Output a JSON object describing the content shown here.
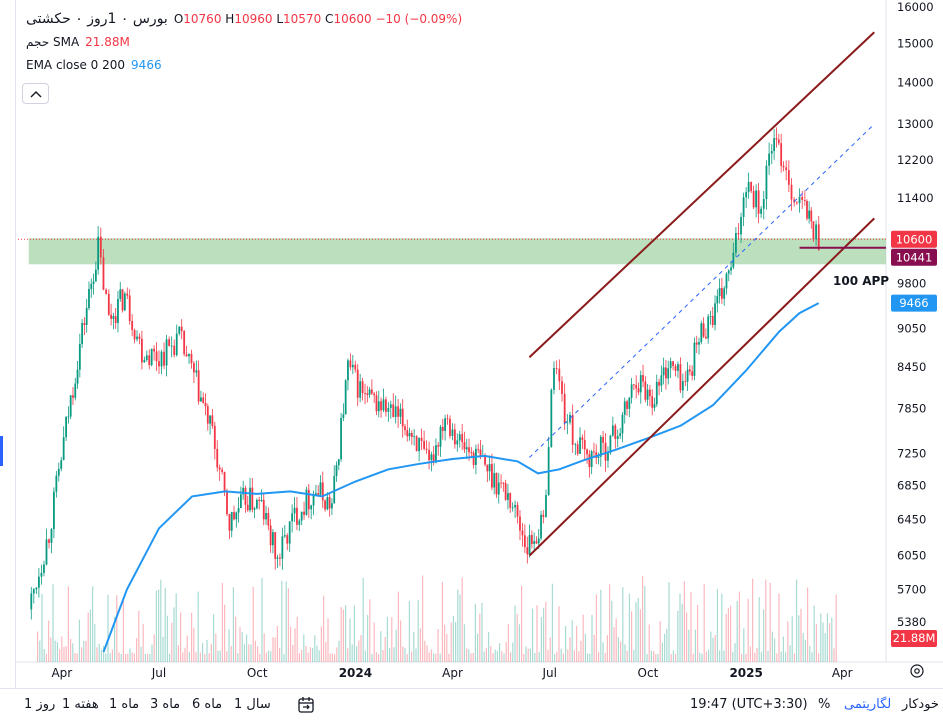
{
  "legend": {
    "symbol": "بورس ۰ 1روز ۰ حکشتی",
    "open_label": "O",
    "open": "10760",
    "high_label": "H",
    "high": "10960",
    "low_label": "L",
    "low": "10570",
    "close_label": "C",
    "close": "10600",
    "change": "−10 (−0.09%)",
    "volume_name": "حجم SMA",
    "volume_value": "21.88M",
    "ema_name": "EMA close 0 200",
    "ema_value": "9466"
  },
  "collapse_icon": "chevron-up-icon",
  "timeframes": [
    "روز 1",
    "هفته 1",
    "ماه 1",
    "ماه 3",
    "ماه 6",
    "سال 1"
  ],
  "bottom_bar": {
    "time": "19:47 (UTC+3:30)",
    "percent": "%",
    "log": "لگاریتمی",
    "auto": "خودکار"
  },
  "chart_data": {
    "type": "candlestick",
    "y_scale": "log",
    "y_ticks": [
      16000,
      15000,
      14000,
      13000,
      12200,
      11400,
      10600,
      9800,
      9050,
      8450,
      7850,
      7250,
      6850,
      6450,
      6050,
      5700,
      5380
    ],
    "y_tick_labels": [
      "16000",
      "15000",
      "14000",
      "13000",
      "12200",
      "11400",
      "",
      "9800",
      "9050",
      "8450",
      "7850",
      "7250",
      "6850",
      "6450",
      "6050",
      "5700",
      "5380"
    ],
    "x_tick_labels": [
      "Apr",
      "Jul",
      "Oct",
      "2024",
      "Apr",
      "Jul",
      "Oct",
      "2025",
      "Apr"
    ],
    "x_tick_dates": [
      "2023-04-01",
      "2023-07-01",
      "2023-10-01",
      "2024-01-01",
      "2024-04-01",
      "2024-07-01",
      "2024-10-01",
      "2025-01-01",
      "2025-04-01"
    ],
    "x_range": [
      "2023-02-18",
      "2025-05-12"
    ],
    "y_range": [
      5100,
      16200
    ],
    "price_labels": [
      {
        "value": 10600,
        "text": "10600",
        "color": "#f23645"
      },
      {
        "value": 10441,
        "text": "10441",
        "color": "#880e4f"
      },
      {
        "value": 9466,
        "text": "9466",
        "color": "#2196f3"
      }
    ],
    "volume_label": {
      "text": "21.88M",
      "color": "#f23645"
    },
    "annotation": {
      "text": "100 APP",
      "date": "2025-03-10",
      "value": 10000
    },
    "support_zone": {
      "date_from": "2023-03-01",
      "date_to": "2025-05-12",
      "low": 10140,
      "high": 10620,
      "color": "#a5d6a7"
    },
    "last_close": 10600,
    "horizontal_line": {
      "date_from": "2025-02-20",
      "date_to": "2025-04-05",
      "value": 10441,
      "color": "#880e4f"
    },
    "channel_lines": [
      {
        "from": [
          "2024-06-12",
          8600
        ],
        "to": [
          "2025-05-01",
          15300
        ],
        "color": "#8b1a1a",
        "dash": false
      },
      {
        "from": [
          "2024-06-12",
          6050
        ],
        "to": [
          "2025-05-01",
          11000
        ],
        "color": "#8b1a1a",
        "dash": false
      },
      {
        "from": [
          "2024-06-12",
          7200
        ],
        "to": [
          "2025-05-01",
          13000
        ],
        "color": "#2962ff",
        "dash": true
      }
    ],
    "ohlc_path": [
      [
        "2023-03-01",
        5500
      ],
      [
        "2023-03-20",
        6300
      ],
      [
        "2023-04-05",
        7600
      ],
      [
        "2023-04-20",
        9000
      ],
      [
        "2023-05-05",
        10450
      ],
      [
        "2023-05-15",
        9200
      ],
      [
        "2023-05-30",
        9600
      ],
      [
        "2023-06-15",
        8700
      ],
      [
        "2023-07-01",
        8600
      ],
      [
        "2023-07-20",
        8900
      ],
      [
        "2023-08-05",
        8200
      ],
      [
        "2023-08-20",
        7500
      ],
      [
        "2023-09-05",
        6400
      ],
      [
        "2023-09-20",
        6700
      ],
      [
        "2023-10-05",
        6600
      ],
      [
        "2023-10-20",
        6000
      ],
      [
        "2023-11-05",
        6500
      ],
      [
        "2023-11-25",
        6800
      ],
      [
        "2023-12-10",
        6600
      ],
      [
        "2023-12-25",
        8450
      ],
      [
        "2024-01-10",
        8000
      ],
      [
        "2024-01-25",
        7900
      ],
      [
        "2024-02-10",
        7700
      ],
      [
        "2024-02-25",
        7500
      ],
      [
        "2024-03-10",
        7050
      ],
      [
        "2024-03-25",
        7800
      ],
      [
        "2024-04-10",
        7350
      ],
      [
        "2024-04-25",
        7200
      ],
      [
        "2024-05-10",
        6950
      ],
      [
        "2024-05-25",
        6700
      ],
      [
        "2024-06-10",
        6150
      ],
      [
        "2024-06-25",
        6400
      ],
      [
        "2024-07-05",
        8600
      ],
      [
        "2024-07-15",
        7800
      ],
      [
        "2024-07-25",
        7400
      ],
      [
        "2024-08-05",
        7200
      ],
      [
        "2024-08-20",
        7300
      ],
      [
        "2024-09-05",
        7600
      ],
      [
        "2024-09-20",
        8300
      ],
      [
        "2024-10-05",
        8000
      ],
      [
        "2024-10-20",
        8500
      ],
      [
        "2024-11-05",
        8200
      ],
      [
        "2024-11-20",
        9000
      ],
      [
        "2024-12-05",
        9400
      ],
      [
        "2024-12-20",
        10200
      ],
      [
        "2025-01-01",
        11800
      ],
      [
        "2025-01-15",
        11200
      ],
      [
        "2025-01-25",
        12600
      ],
      [
        "2025-02-05",
        12200
      ],
      [
        "2025-02-15",
        11400
      ],
      [
        "2025-02-25",
        11200
      ],
      [
        "2025-03-05",
        10800
      ],
      [
        "2025-03-10",
        10600
      ]
    ],
    "ema200": [
      [
        "2023-05-10",
        5100
      ],
      [
        "2023-06-01",
        5700
      ],
      [
        "2023-07-01",
        6350
      ],
      [
        "2023-08-01",
        6720
      ],
      [
        "2023-09-01",
        6780
      ],
      [
        "2023-10-01",
        6750
      ],
      [
        "2023-11-01",
        6780
      ],
      [
        "2023-12-01",
        6720
      ],
      [
        "2024-01-01",
        6900
      ],
      [
        "2024-02-01",
        7050
      ],
      [
        "2024-03-01",
        7120
      ],
      [
        "2024-04-01",
        7180
      ],
      [
        "2024-05-01",
        7220
      ],
      [
        "2024-06-01",
        7150
      ],
      [
        "2024-06-20",
        7000
      ],
      [
        "2024-07-10",
        7050
      ],
      [
        "2024-08-01",
        7160
      ],
      [
        "2024-09-01",
        7300
      ],
      [
        "2024-10-01",
        7450
      ],
      [
        "2024-11-01",
        7620
      ],
      [
        "2024-12-01",
        7900
      ],
      [
        "2025-01-01",
        8400
      ],
      [
        "2025-02-01",
        9000
      ],
      [
        "2025-02-20",
        9300
      ],
      [
        "2025-03-10",
        9466
      ]
    ],
    "volume_max": 80
  }
}
